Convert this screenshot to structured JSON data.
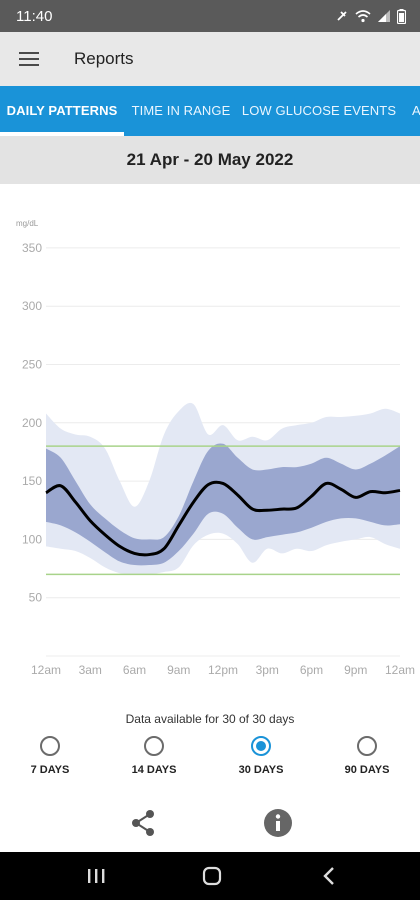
{
  "status_bar": {
    "time": "11:40"
  },
  "header": {
    "title": "Reports"
  },
  "tabs": [
    {
      "label": "DAILY PATTERNS",
      "active": true
    },
    {
      "label": "TIME IN RANGE",
      "active": false
    },
    {
      "label": "LOW GLUCOSE EVENTS",
      "active": false
    },
    {
      "label": "A",
      "active": false
    }
  ],
  "date_range": "21 Apr - 20 May 2022",
  "chart_data": {
    "type": "area",
    "ylabel": "mg/dL",
    "y_ticks": [
      50,
      100,
      150,
      200,
      250,
      300,
      350
    ],
    "ylim": [
      0,
      360
    ],
    "x_ticks": [
      "12am",
      "3am",
      "6am",
      "9am",
      "12pm",
      "3pm",
      "6pm",
      "9pm",
      "12am"
    ],
    "xlim": [
      0,
      24
    ],
    "target_range": [
      70,
      180
    ],
    "target_color": "#a8d38a",
    "x": [
      0,
      1,
      2,
      3,
      4,
      5,
      6,
      7,
      8,
      9,
      10,
      11,
      12,
      13,
      14,
      15,
      16,
      17,
      18,
      19,
      20,
      21,
      22,
      23,
      24
    ],
    "series": [
      {
        "role": "10-90 band",
        "color": "#e3e8f4",
        "upper": [
          208,
          195,
          190,
          188,
          178,
          150,
          128,
          150,
          190,
          210,
          216,
          190,
          198,
          185,
          188,
          185,
          195,
          198,
          200,
          205,
          205,
          206,
          208,
          212,
          208
        ],
        "lower": [
          94,
          92,
          90,
          84,
          76,
          71,
          70,
          70,
          72,
          76,
          95,
          104,
          105,
          96,
          80,
          92,
          88,
          92,
          90,
          95,
          98,
          100,
          102,
          96,
          92
        ]
      },
      {
        "role": "25-75 band",
        "color": "#9aa7cf",
        "upper": [
          178,
          170,
          150,
          130,
          118,
          108,
          101,
          100,
          102,
          120,
          150,
          176,
          182,
          170,
          160,
          160,
          162,
          162,
          165,
          170,
          165,
          160,
          165,
          172,
          180
        ],
        "lower": [
          115,
          112,
          106,
          98,
          89,
          81,
          78,
          78,
          80,
          90,
          105,
          122,
          122,
          110,
          100,
          102,
          104,
          106,
          110,
          115,
          118,
          118,
          115,
          112,
          113
        ]
      },
      {
        "role": "median",
        "color": "#000000",
        "values": [
          140,
          146,
          132,
          116,
          104,
          94,
          88,
          87,
          92,
          112,
          132,
          147,
          148,
          138,
          126,
          125,
          126,
          127,
          137,
          148,
          143,
          136,
          141,
          140,
          142
        ]
      }
    ]
  },
  "availability_text": "Data available for 30 of 30 days",
  "range_options": [
    {
      "label": "7 DAYS",
      "selected": false
    },
    {
      "label": "14 DAYS",
      "selected": false
    },
    {
      "label": "30 DAYS",
      "selected": true
    },
    {
      "label": "90 DAYS",
      "selected": false
    }
  ],
  "actions": {
    "share_icon": "share-icon",
    "info_icon": "info-icon"
  },
  "colors": {
    "accent": "#1a93d8",
    "status_bar": "#5a5a5a",
    "app_bar": "#e8e8e8",
    "date_bar": "#e3e3e3"
  }
}
